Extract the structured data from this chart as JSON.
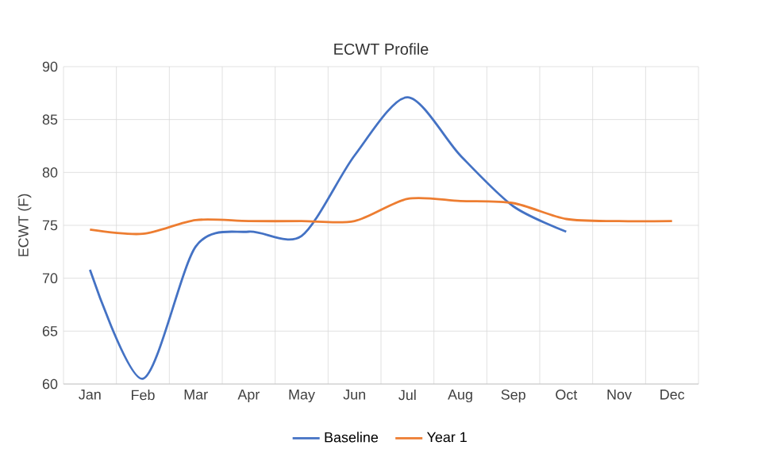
{
  "chart_data": {
    "type": "line",
    "title": "ECWT Profile",
    "ylabel": "ECWT (F)",
    "categories": [
      "Jan",
      "Feb",
      "Mar",
      "Apr",
      "May",
      "Jun",
      "Jul",
      "Aug",
      "Sep",
      "Oct",
      "Nov",
      "Dec"
    ],
    "series": [
      {
        "name": "Baseline",
        "color": "#4472c4",
        "values": [
          70.8,
          60.5,
          73.0,
          74.4,
          74.0,
          81.6,
          87.1,
          81.6,
          76.8,
          74.4,
          null,
          null
        ]
      },
      {
        "name": "Year 1",
        "color": "#ed7d31",
        "values": [
          74.6,
          74.2,
          75.5,
          75.4,
          75.4,
          75.4,
          77.5,
          77.3,
          77.1,
          75.6,
          75.4,
          75.4
        ]
      }
    ],
    "ylim": [
      60,
      90
    ],
    "yticks": [
      60,
      65,
      70,
      75,
      80,
      85,
      90
    ],
    "grid": true,
    "legend": "bottom",
    "marker": "none",
    "line_style": "solid"
  }
}
